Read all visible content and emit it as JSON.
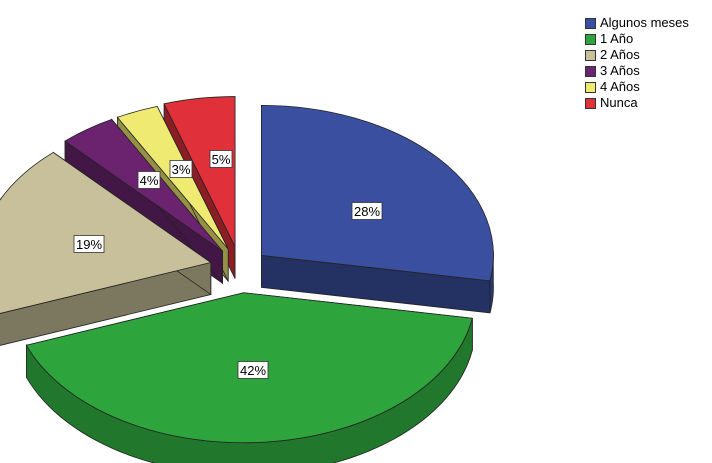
{
  "chart_data": {
    "type": "pie",
    "categories": [
      "Algunos meses",
      "1 Año",
      "2 Años",
      "3 Años",
      "4 Años",
      "Nunca"
    ],
    "values": [
      28,
      42,
      19,
      4,
      3,
      5
    ],
    "labels": [
      "28%",
      "42%",
      "19%",
      "4%",
      "3%",
      "5%"
    ],
    "colors": [
      "#3a4fa0",
      "#2ea53c",
      "#c8c09a",
      "#6b2370",
      "#eeea72",
      "#e0313a"
    ],
    "legend_position": "top-right",
    "exploded": true,
    "three_d": true
  }
}
